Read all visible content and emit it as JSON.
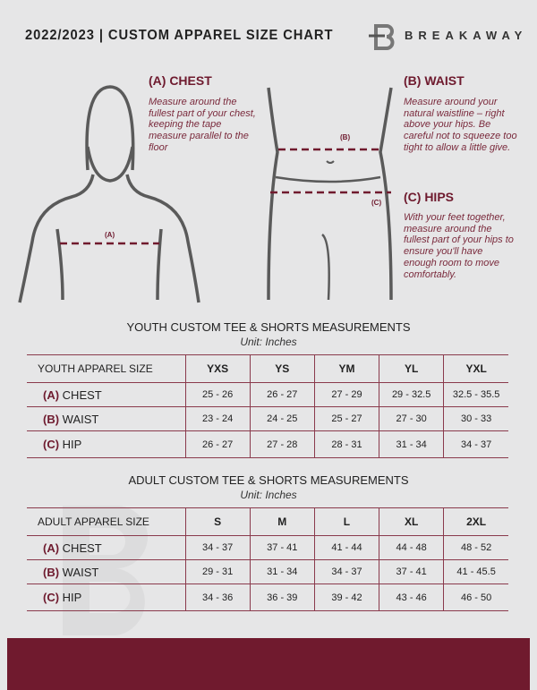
{
  "header": {
    "title": "2022/2023  |  CUSTOM APPAREL SIZE CHART",
    "brand": "BREAKAWAY"
  },
  "measures": {
    "chest": {
      "heading": "(A) CHEST",
      "text": "Measure around the fullest part of your chest, keeping the tape measure parallel to the floor",
      "marker": "(A)"
    },
    "waist": {
      "heading": "(B) WAIST",
      "text": "Measure around your natural waistline – right above your hips. Be careful not to squeeze too tight to allow a little give.",
      "marker": "(B)"
    },
    "hips": {
      "heading": "(C) HIPS",
      "text": "With your feet together, measure around the fullest part of your hips to ensure you'll have enough room to move comfortably.",
      "marker": "(C)"
    }
  },
  "youth": {
    "title": "YOUTH CUSTOM TEE & SHORTS MEASUREMENTS",
    "unit": "Unit: Inches",
    "header": "YOUTH APPAREL SIZE",
    "sizes": [
      "YXS",
      "YS",
      "YM",
      "YL",
      "YXL"
    ],
    "rows": [
      {
        "code": "(A)",
        "name": "CHEST",
        "values": [
          "25 - 26",
          "26 - 27",
          "27 - 29",
          "29 - 32.5",
          "32.5 - 35.5"
        ]
      },
      {
        "code": "(B)",
        "name": "WAIST",
        "values": [
          "23 - 24",
          "24 - 25",
          "25 - 27",
          "27 - 30",
          "30 - 33"
        ]
      },
      {
        "code": "(C)",
        "name": "HIP",
        "values": [
          "26 - 27",
          "27 - 28",
          "28 - 31",
          "31 - 34",
          "34 - 37"
        ]
      }
    ]
  },
  "adult": {
    "title": "ADULT CUSTOM TEE & SHORTS MEASUREMENTS",
    "unit": "Unit: Inches",
    "header": "ADULT APPAREL SIZE",
    "sizes": [
      "S",
      "M",
      "L",
      "XL",
      "2XL"
    ],
    "rows": [
      {
        "code": "(A)",
        "name": "CHEST",
        "values": [
          "34 - 37",
          "37 - 41",
          "41 - 44",
          "44 - 48",
          "48 - 52"
        ]
      },
      {
        "code": "(B)",
        "name": "WAIST",
        "values": [
          "29 - 31",
          "31 - 34",
          "34 - 37",
          "37 - 41",
          "41 - 45.5"
        ]
      },
      {
        "code": "(C)",
        "name": "HIP",
        "values": [
          "34 - 36",
          "36 - 39",
          "39 - 42",
          "43 - 46",
          "46 - 50"
        ]
      }
    ]
  },
  "colors": {
    "accent": "#701a2e",
    "background": "#e6e6e7"
  }
}
